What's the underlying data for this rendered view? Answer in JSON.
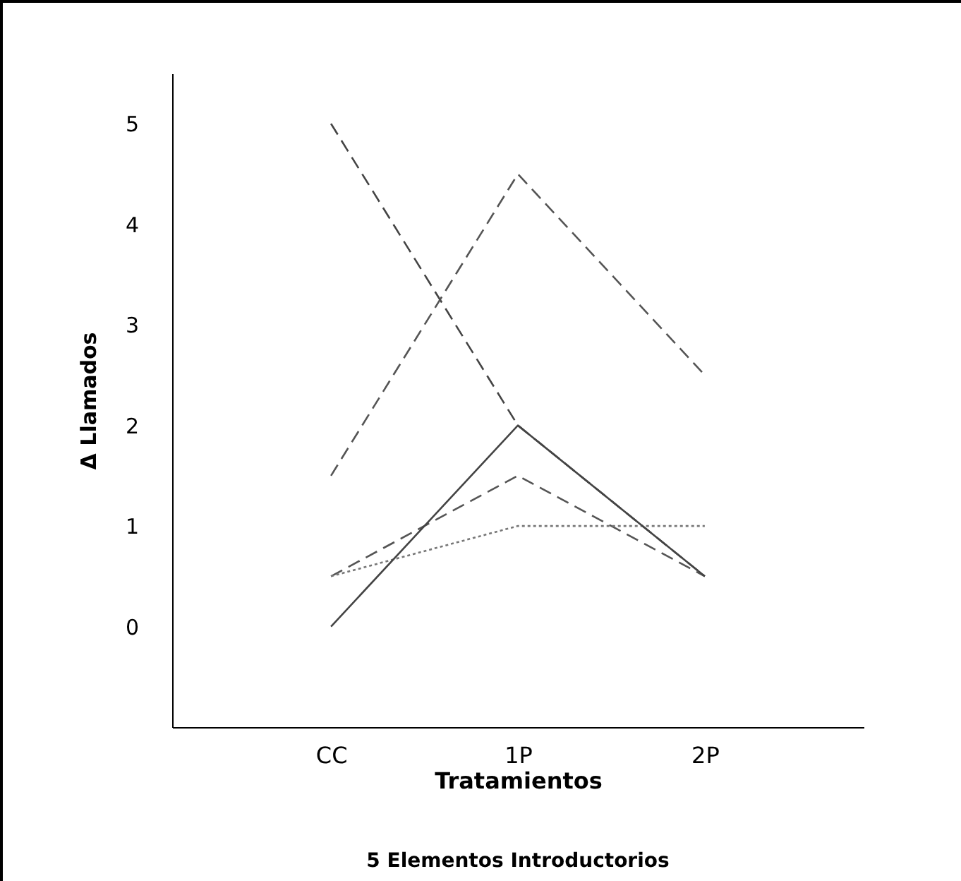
{
  "chart_data": {
    "type": "line",
    "xlabel": "Tratamientos",
    "ylabel": "Δ Llamados",
    "annotations": [
      "5 Elementos Introductorios"
    ],
    "categories": [
      "CC",
      "1P",
      "2P"
    ],
    "ylim": [
      -1,
      5.5
    ],
    "yticks": [
      0,
      1,
      2,
      3,
      4,
      5
    ],
    "grid": false,
    "marker": "none",
    "series": [
      {
        "color": "#444444",
        "line_style": "dashed",
        "values": [
          5,
          2,
          0.5
        ]
      },
      {
        "color": "#555555",
        "line_style": "dashed",
        "values": [
          1.5,
          4.5,
          2.5
        ]
      },
      {
        "color": "#555555",
        "line_style": "dashed",
        "values": [
          0.5,
          1.5,
          0.5
        ]
      },
      {
        "color": "#777777",
        "line_style": "dotted",
        "values": [
          0.5,
          1,
          1
        ]
      },
      {
        "color": "#444444",
        "line_style": "solid",
        "values": [
          0,
          2,
          0.5
        ]
      }
    ]
  }
}
